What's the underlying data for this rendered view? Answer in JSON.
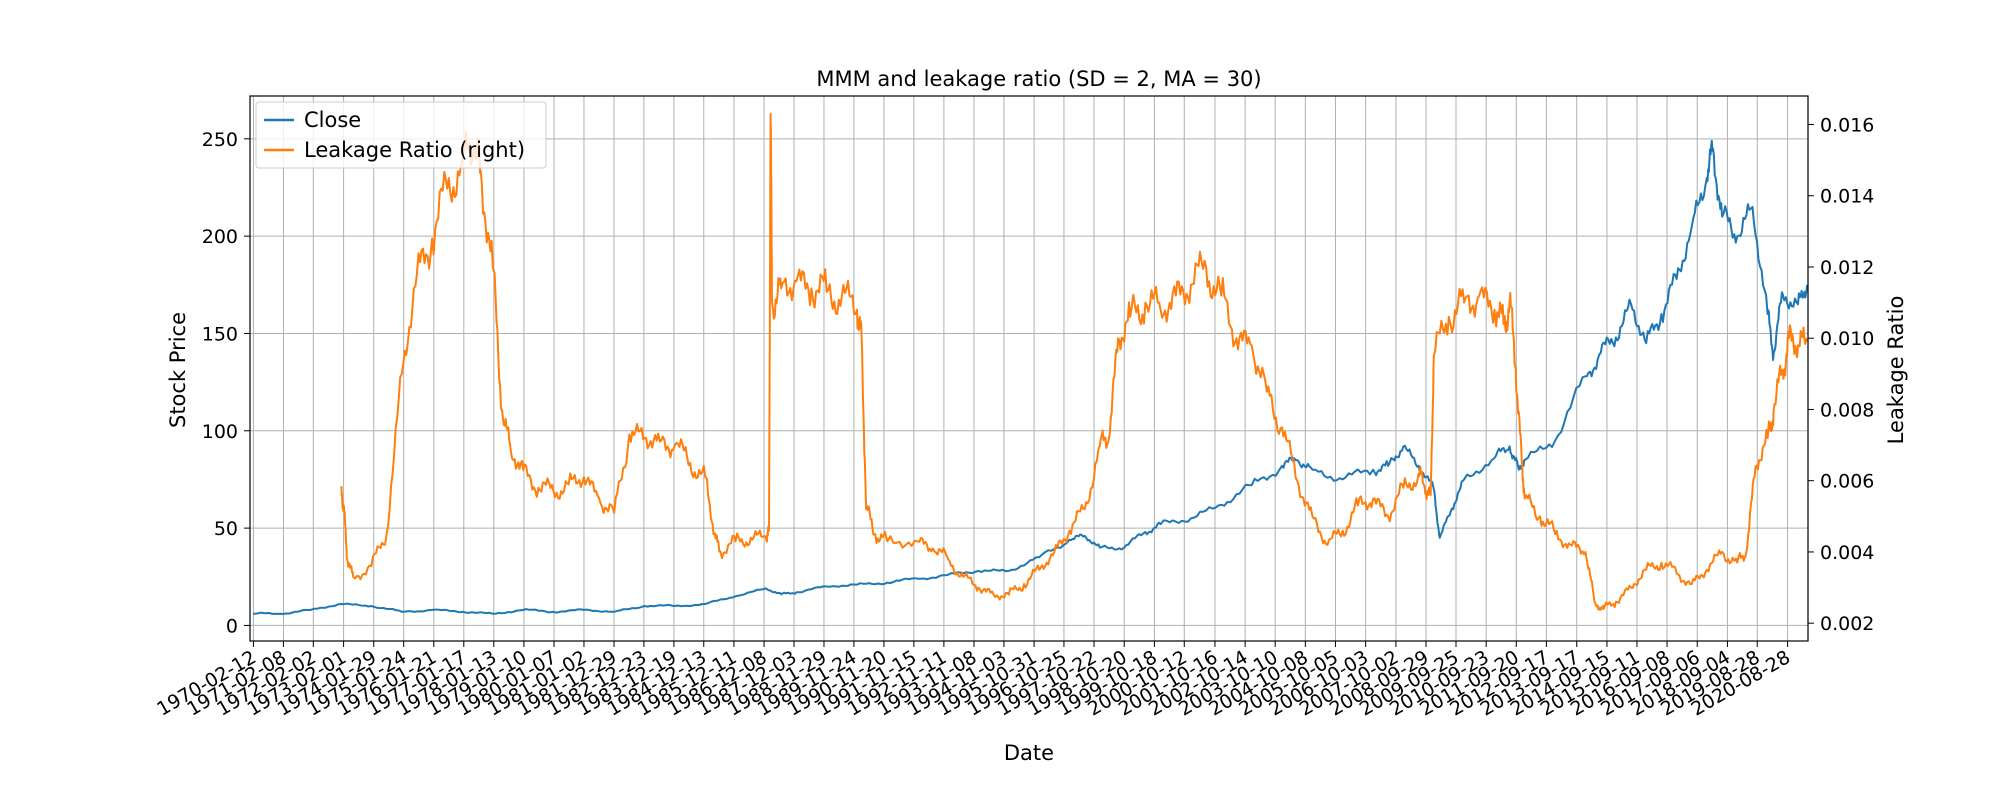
{
  "chart_data": {
    "type": "line",
    "title": "MMM and leakage ratio (SD = 2, MA = 30)",
    "xlabel": "Date",
    "ylabel": "Stock Price",
    "ylabel_right": "Leakage Ratio",
    "xlim": [
      "1970-01-01",
      "2021-04-30"
    ],
    "ylim": [
      -8,
      272
    ],
    "ylim_right": [
      0.0015,
      0.0168
    ],
    "yticks": [
      0,
      50,
      100,
      150,
      200,
      250
    ],
    "yticks_right": [
      "0.002",
      "0.004",
      "0.006",
      "0.008",
      "0.010",
      "0.012",
      "0.014",
      "0.016"
    ],
    "grid": true,
    "legend_position": "top-left",
    "colors": {
      "close": "#1f77b4",
      "leakage": "#ff7f0e"
    },
    "xtick_labels": [
      "1970-02-12",
      "1971-02-08",
      "1972-02-02",
      "1973-02-01",
      "1974-01-29",
      "1975-01-24",
      "1976-01-21",
      "1977-01-17",
      "1978-01-13",
      "1979-01-10",
      "1980-01-07",
      "1981-01-02",
      "1981-12-29",
      "1982-12-23",
      "1983-12-19",
      "1984-12-13",
      "1985-12-11",
      "1986-12-08",
      "1987-12-03",
      "1988-11-29",
      "1989-11-24",
      "1990-11-20",
      "1991-11-15",
      "1992-11-11",
      "1993-11-08",
      "1994-11-03",
      "1995-10-31",
      "1996-10-25",
      "1997-10-22",
      "1998-10-20",
      "1999-10-18",
      "2000-10-12",
      "2001-10-16",
      "2002-10-14",
      "2003-10-10",
      "2004-10-08",
      "2005-10-05",
      "2006-10-03",
      "2007-10-02",
      "2008-09-29",
      "2009-09-25",
      "2010-09-23",
      "2011-09-20",
      "2012-09-17",
      "2013-09-17",
      "2014-09-15",
      "2015-09-11",
      "2016-09-08",
      "2017-09-06",
      "2018-09-04",
      "2019-08-28",
      "2020-08-28"
    ],
    "series": [
      {
        "name": "Close",
        "axis": "left",
        "x": [
          1970.1,
          1971.0,
          1972.0,
          1973.0,
          1974.0,
          1975.0,
          1976.0,
          1977.0,
          1978.0,
          1979.0,
          1980.0,
          1981.0,
          1982.0,
          1983.0,
          1984.0,
          1985.0,
          1986.0,
          1987.0,
          1987.5,
          1988.0,
          1989.0,
          1990.0,
          1991.0,
          1992.0,
          1993.0,
          1994.0,
          1995.0,
          1996.0,
          1997.0,
          1997.5,
          1998.0,
          1998.8,
          1999.5,
          2000.0,
          2001.0,
          2002.0,
          2003.0,
          2004.0,
          2004.5,
          2005.0,
          2006.0,
          2007.0,
          2007.5,
          2008.0,
          2008.5,
          2009.0,
          2009.2,
          2009.6,
          2010.0,
          2011.0,
          2011.5,
          2011.8,
          2012.0,
          2013.0,
          2014.0,
          2014.5,
          2015.0,
          2015.5,
          2016.0,
          2016.5,
          2017.0,
          2017.5,
          2018.0,
          2018.2,
          2018.5,
          2019.0,
          2019.5,
          2020.0,
          2020.2,
          2020.5,
          2021.0,
          2021.3
        ],
        "y": [
          6,
          6,
          8,
          11,
          10,
          7,
          8,
          7,
          6,
          8,
          7,
          8,
          7,
          10,
          10,
          11,
          15,
          19,
          16,
          17,
          20,
          21,
          22,
          24,
          26,
          28,
          28,
          35,
          44,
          46,
          40,
          40,
          48,
          52,
          55,
          62,
          72,
          82,
          85,
          80,
          75,
          80,
          82,
          92,
          82,
          70,
          45,
          60,
          75,
          86,
          92,
          80,
          85,
          95,
          128,
          140,
          148,
          165,
          145,
          160,
          178,
          205,
          230,
          245,
          210,
          200,
          215,
          160,
          140,
          170,
          165,
          175
        ]
      },
      {
        "name": "Leakage Ratio (right)",
        "axis": "right",
        "x": [
          1973.0,
          1973.1,
          1973.2,
          1973.4,
          1974.0,
          1974.5,
          1975.0,
          1975.5,
          1976.0,
          1976.5,
          1977.0,
          1977.4,
          1977.6,
          1978.0,
          1978.3,
          1978.6,
          1979.0,
          1979.5,
          1980.0,
          1980.5,
          1981.0,
          1981.5,
          1982.0,
          1982.5,
          1983.0,
          1983.5,
          1984.0,
          1984.5,
          1985.0,
          1985.3,
          1985.5,
          1986.0,
          1986.5,
          1987.0,
          1987.1,
          1987.15,
          1987.2,
          1987.5,
          1988.0,
          1988.5,
          1989.0,
          1989.5,
          1990.0,
          1990.15,
          1990.3,
          1990.6,
          1991.0,
          1992.0,
          1992.5,
          1993.0,
          1993.5,
          1994.0,
          1994.5,
          1995.0,
          1995.5,
          1996.0,
          1996.5,
          1997.0,
          1997.5,
          1998.0,
          1998.3,
          1998.6,
          1999.0,
          1999.5,
          2000.0,
          2000.5,
          2001.0,
          2001.5,
          2002.0,
          2002.5,
          2003.0,
          2003.5,
          2004.0,
          2004.5,
          2005.0,
          2005.5,
          2006.0,
          2006.5,
          2007.0,
          2007.5,
          2008.0,
          2008.5,
          2008.7,
          2008.9,
          2009.0,
          2009.5,
          2010.0,
          2010.5,
          2011.0,
          2011.3,
          2011.5,
          2011.7,
          2011.9,
          2012.0,
          2012.5,
          2013.0,
          2013.5,
          2014.0,
          2014.3,
          2014.6,
          2015.0,
          2015.5,
          2016.0,
          2016.5,
          2017.0,
          2017.5,
          2018.0,
          2018.5,
          2019.0,
          2019.3,
          2019.6,
          2020.0,
          2020.2,
          2020.5,
          2020.7,
          2021.0,
          2021.3
        ],
        "y": [
          0.0058,
          0.0052,
          0.0038,
          0.0033,
          0.0036,
          0.0045,
          0.009,
          0.0118,
          0.0128,
          0.0142,
          0.015,
          0.0154,
          0.0147,
          0.012,
          0.008,
          0.0068,
          0.0063,
          0.0058,
          0.0057,
          0.0059,
          0.0061,
          0.0055,
          0.0051,
          0.0073,
          0.0072,
          0.0071,
          0.007,
          0.0065,
          0.0061,
          0.0045,
          0.004,
          0.0043,
          0.0044,
          0.0044,
          0.0046,
          0.0163,
          0.011,
          0.0114,
          0.0116,
          0.0114,
          0.0113,
          0.0112,
          0.0108,
          0.01,
          0.0052,
          0.0045,
          0.0043,
          0.0043,
          0.0041,
          0.0038,
          0.0033,
          0.003,
          0.0028,
          0.0028,
          0.0031,
          0.0035,
          0.004,
          0.0046,
          0.0052,
          0.007,
          0.0072,
          0.01,
          0.0106,
          0.011,
          0.0108,
          0.0112,
          0.0115,
          0.012,
          0.0112,
          0.01,
          0.0098,
          0.0085,
          0.0075,
          0.006,
          0.005,
          0.0042,
          0.0046,
          0.0053,
          0.0055,
          0.005,
          0.0058,
          0.0062,
          0.0058,
          0.0056,
          0.0095,
          0.0106,
          0.011,
          0.0112,
          0.0108,
          0.0104,
          0.011,
          0.0092,
          0.0065,
          0.0055,
          0.005,
          0.0045,
          0.0042,
          0.004,
          0.0026,
          0.0024,
          0.0026,
          0.003,
          0.0035,
          0.0037,
          0.0034,
          0.0031,
          0.0035,
          0.004,
          0.0037,
          0.004,
          0.0064,
          0.0072,
          0.008,
          0.0091,
          0.01,
          0.0098,
          0.0099
        ]
      }
    ]
  }
}
